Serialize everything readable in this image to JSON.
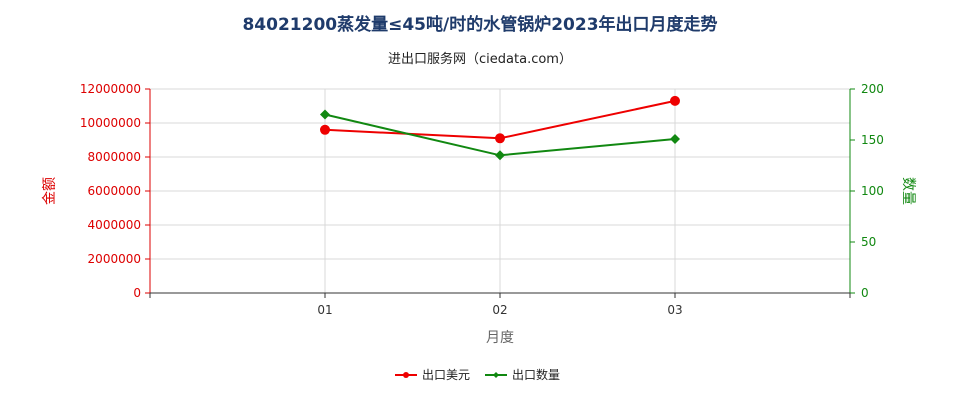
{
  "chart_data": {
    "type": "line",
    "title": "84021200蒸发量≤45吨/时的水管锅炉2023年出口月度走势",
    "subtitle": "进出口服务网（ciedata.com）",
    "xlabel": "月度",
    "ylabel_left": "金额",
    "ylabel_right": "数量",
    "categories": [
      "01",
      "02",
      "03"
    ],
    "y_left_ticks": [
      "0",
      "2000000",
      "4000000",
      "6000000",
      "8000000",
      "10000000",
      "12000000"
    ],
    "y_right_ticks": [
      "0",
      "50",
      "100",
      "150",
      "200"
    ],
    "ylim_left": [
      0,
      12000000
    ],
    "ylim_right": [
      0,
      200
    ],
    "grid": true,
    "legend_position": "bottom",
    "series": [
      {
        "name": "出口美元",
        "axis": "left",
        "color": "#ee0000",
        "marker": "circle",
        "values": [
          9600000,
          9100000,
          11300000
        ]
      },
      {
        "name": "出口数量",
        "axis": "right",
        "color": "#118811",
        "marker": "diamond",
        "values": [
          175,
          135,
          151
        ]
      }
    ],
    "colors": {
      "left_axis": "#dd0000",
      "right_axis": "#118811",
      "title": "#1f3b6b"
    }
  }
}
